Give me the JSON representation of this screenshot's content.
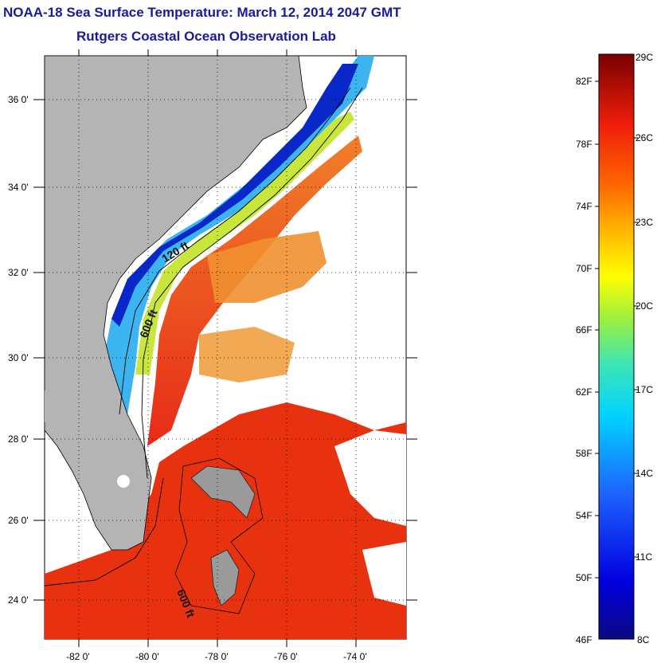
{
  "title": {
    "line1": "NOAA-18 Sea Surface Temperature:  March 12, 2014 2047 GMT",
    "line2": "Rutgers Coastal Ocean Observation Lab"
  },
  "map": {
    "lat_labels": [
      "36 0'",
      "34 0'",
      "32 0'",
      "30 0'",
      "28 0'",
      "26 0'",
      "24 0'"
    ],
    "lon_labels": [
      "-82 0'",
      "-80 0'",
      "-78 0'",
      "-76 0'",
      "-74 0'"
    ],
    "contour_labels": [
      "120 ft",
      "600 ft",
      "600 ft"
    ],
    "colors": {
      "land": "#b4b4b4",
      "warm": "#e82a10",
      "cold": "#0a14b4"
    }
  },
  "colorbar": {
    "fahrenheit_labels": [
      "82F",
      "78F",
      "74F",
      "70F",
      "66F",
      "62F",
      "58F",
      "54F",
      "50F",
      "46F"
    ],
    "celsius_labels": [
      "29C",
      "26C",
      "23C",
      "20C",
      "17C",
      "14C",
      "11C",
      "8C"
    ]
  }
}
